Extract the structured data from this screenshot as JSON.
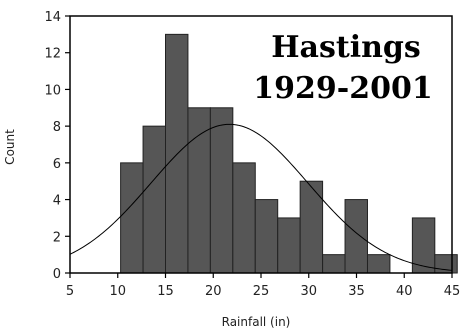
{
  "chart_data": {
    "type": "bar",
    "title_lines": [
      "Hastings",
      "1929-2001"
    ],
    "xlabel": "Rainfall (in)",
    "ylabel": "Count",
    "xlim": [
      5,
      45
    ],
    "ylim": [
      0,
      14
    ],
    "x_ticks": [
      5,
      10,
      15,
      20,
      25,
      30,
      35,
      40,
      45
    ],
    "y_ticks": [
      0,
      2,
      4,
      6,
      8,
      10,
      12,
      14
    ],
    "grid": false,
    "bin_width": 2.35,
    "bin_start": 10.3,
    "values": [
      6,
      8,
      13,
      9,
      9,
      6,
      4,
      3,
      5,
      1,
      4,
      1,
      0,
      3,
      1
    ],
    "normal_curve": {
      "mean": 21.7,
      "sd": 8.2,
      "peak": 8.1
    }
  }
}
